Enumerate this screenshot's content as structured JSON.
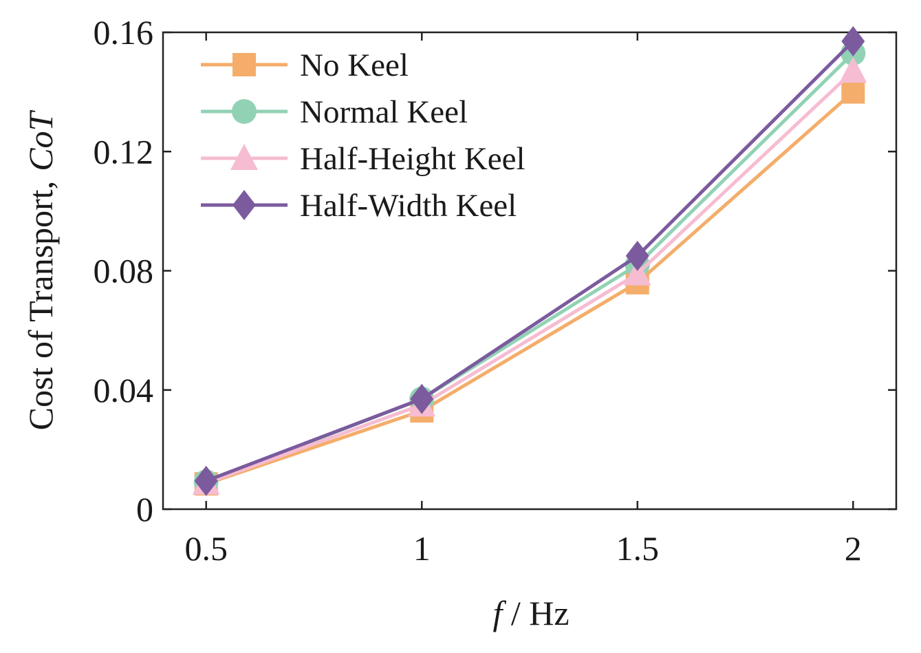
{
  "chart_data": {
    "type": "line",
    "x": [
      0.5,
      1,
      1.5,
      2
    ],
    "xticks": [
      "0.5",
      "1",
      "1.5",
      "2"
    ],
    "xlim": [
      0.4,
      2.1
    ],
    "ylim": [
      0,
      0.16
    ],
    "yticks": [
      "0",
      "0.04",
      "0.08",
      "0.12",
      "0.16"
    ],
    "ytick_values": [
      0,
      0.04,
      0.08,
      0.12,
      0.16
    ],
    "xlabel_italic": "f",
    "xlabel_rest": " / Hz",
    "ylabel_text": "Cost of Transport,",
    "ylabel_italic": "CoT",
    "grid": false,
    "legend_position": "top-left",
    "series": [
      {
        "name": "No Keel",
        "marker": "square",
        "color": "#f4ad6a",
        "values": [
          0.0085,
          0.033,
          0.076,
          0.14
        ]
      },
      {
        "name": "Normal Keel",
        "marker": "circle",
        "color": "#92d2b4",
        "values": [
          0.0092,
          0.037,
          0.082,
          0.153
        ]
      },
      {
        "name": "Half-Height Keel",
        "marker": "triangle",
        "color": "#f6bcd2",
        "values": [
          0.0088,
          0.035,
          0.079,
          0.147
        ]
      },
      {
        "name": "Half-Width Keel",
        "marker": "diamond",
        "color": "#7b5b9e",
        "values": [
          0.0095,
          0.037,
          0.085,
          0.157
        ]
      }
    ]
  }
}
